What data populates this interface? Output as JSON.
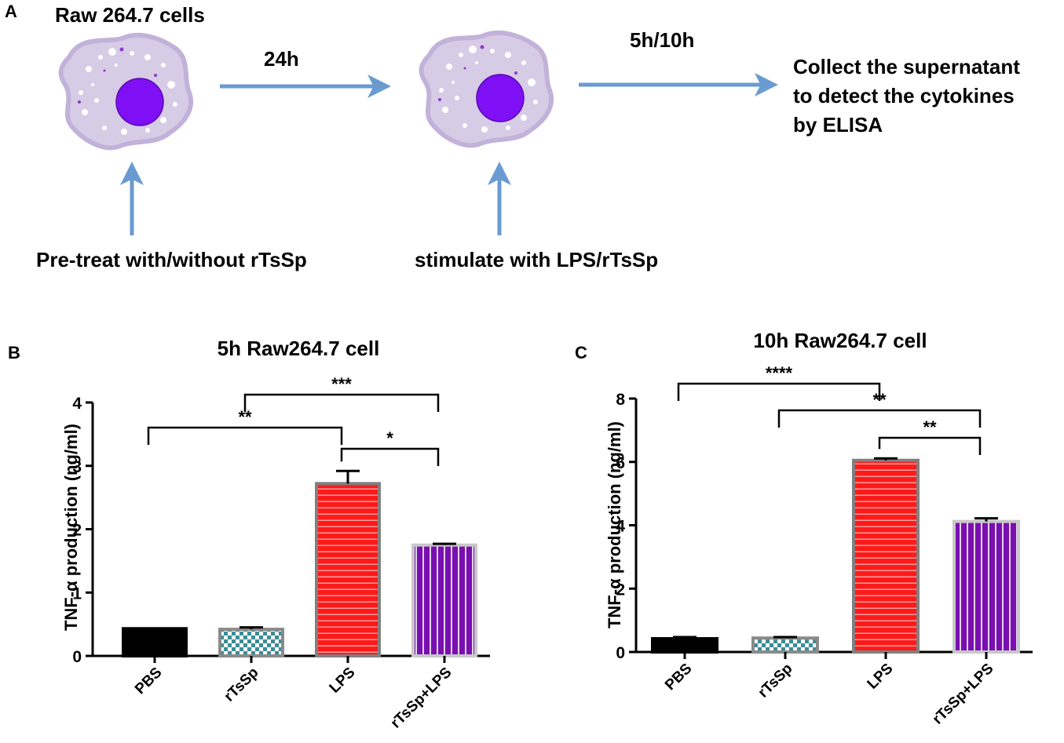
{
  "panel_a": {
    "label": "A",
    "cell1_title": "Raw 264.7 cells",
    "arrow1_label": "24h",
    "arrow2_label": "5h/10h",
    "collect_lines": [
      "Collect the supernatant",
      "to detect the cytokines",
      "by ELISA"
    ],
    "pretreat_label": "Pre-treat with/without rTsSp",
    "stimulate_label": "stimulate with LPS/rTsSp",
    "colors": {
      "arrow": "#6a9bd0",
      "cell_body": "#d7cce6",
      "cell_edge": "#c2b2da",
      "nucleus": "#7f0ff5"
    }
  },
  "chart_data": [
    {
      "panel": "B",
      "type": "bar",
      "title": "5h Raw264.7 cell",
      "ylabel": "TNF-α production (ng/ml)",
      "xlabel": "",
      "ylim": [
        0,
        4
      ],
      "yticks": [
        "0",
        "1",
        "2",
        "3",
        "4"
      ],
      "categories": [
        "PBS",
        "rTsSp",
        "LPS",
        "rTsSp+LPS"
      ],
      "values": [
        0.43,
        0.42,
        2.72,
        1.75
      ],
      "errors": [
        0.0,
        0.03,
        0.2,
        0.02
      ],
      "fills": [
        "solid-black",
        "checker-teal",
        "red-horizontal-stripes",
        "purple-vertical-stripes"
      ],
      "significance": [
        {
          "from": "PBS",
          "to": "LPS",
          "label": "**"
        },
        {
          "from": "rTsSp",
          "to": "rTsSp+LPS",
          "label": "***"
        },
        {
          "from": "LPS",
          "to": "rTsSp+LPS",
          "label": "*"
        }
      ]
    },
    {
      "panel": "C",
      "type": "bar",
      "title": "10h Raw264.7 cell",
      "ylabel": "TNF-α production (ng/ml)",
      "xlabel": "",
      "ylim": [
        0,
        8
      ],
      "yticks": [
        "0",
        "2",
        "4",
        "6",
        "8"
      ],
      "categories": [
        "PBS",
        "rTsSp",
        "LPS",
        "rTsSp+LPS"
      ],
      "values": [
        0.42,
        0.44,
        6.05,
        4.12
      ],
      "errors": [
        0.05,
        0.03,
        0.06,
        0.1
      ],
      "fills": [
        "solid-black",
        "checker-teal",
        "red-horizontal-stripes",
        "purple-vertical-stripes"
      ],
      "significance": [
        {
          "from": "PBS",
          "to": "LPS",
          "label": "****"
        },
        {
          "from": "rTsSp",
          "to": "rTsSp+LPS",
          "label": "**"
        },
        {
          "from": "LPS",
          "to": "rTsSp+LPS",
          "label": "**"
        }
      ]
    }
  ]
}
